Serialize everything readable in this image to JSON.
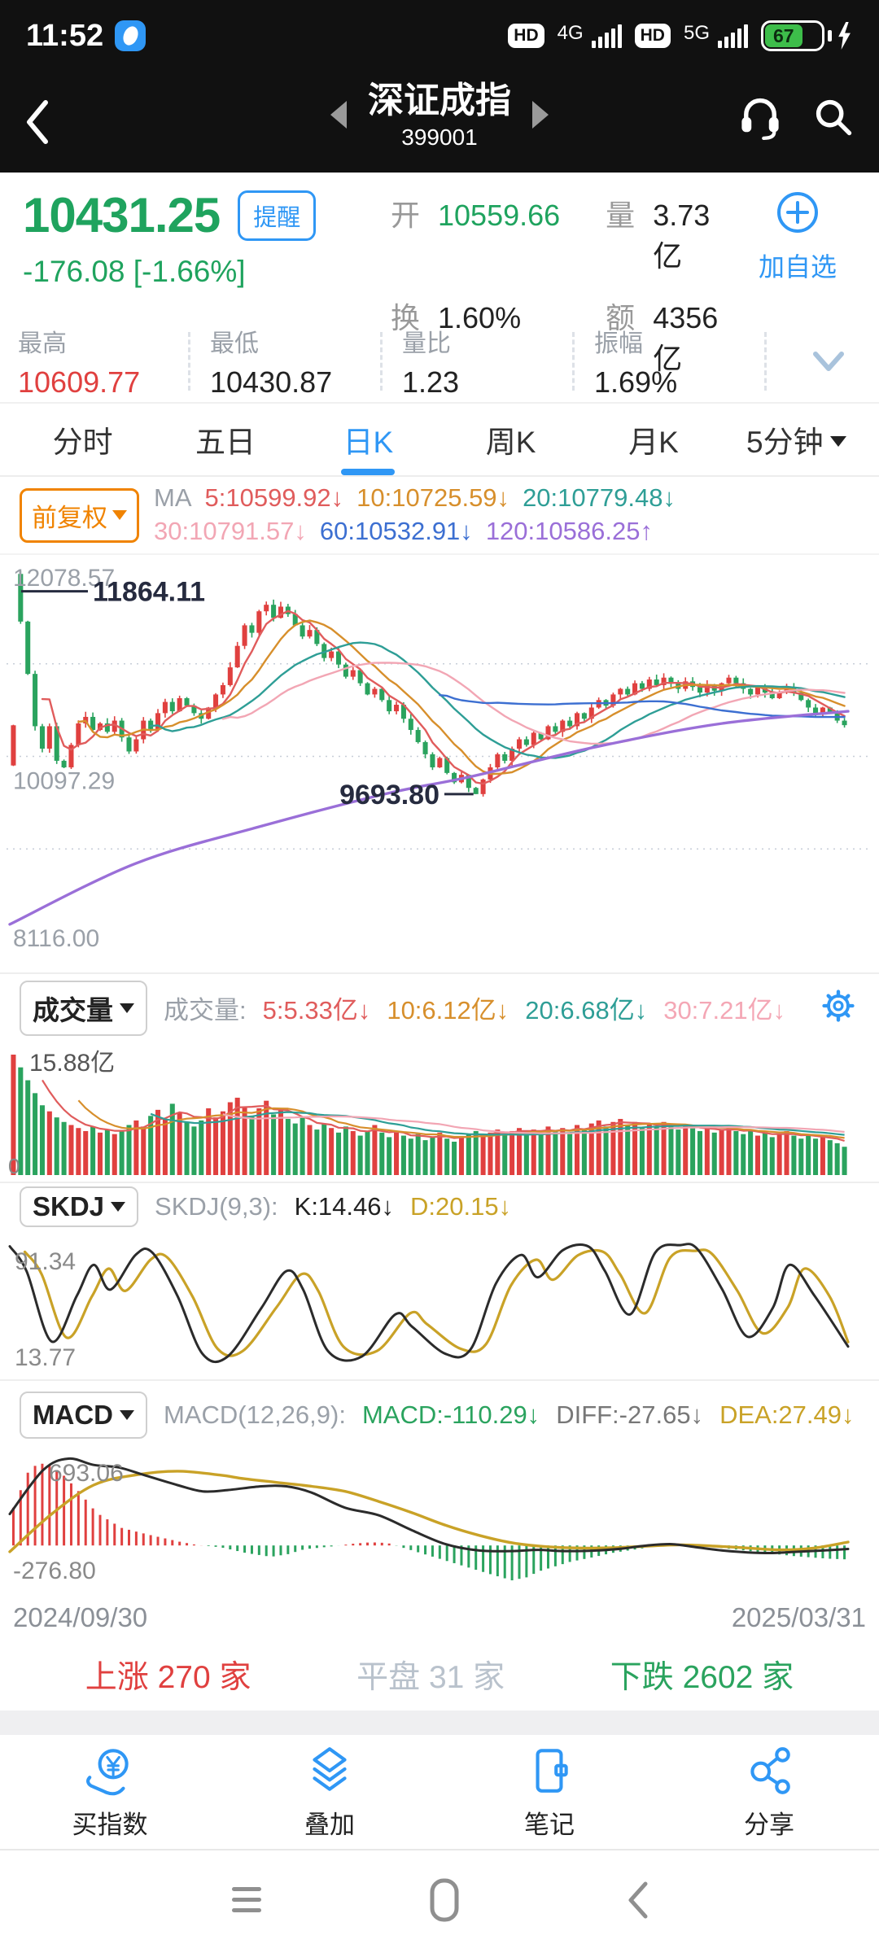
{
  "status_bar": {
    "time": "11:52",
    "hd": "HD",
    "net1": "4G",
    "net2": "5G",
    "battery": "67"
  },
  "header": {
    "title": "深证成指",
    "code": "399001"
  },
  "quote": {
    "price": "10431.25",
    "alert_label": "提醒",
    "change": "-176.08  [-1.66%]",
    "open_label": "开",
    "open": "10559.66",
    "vol_label": "量",
    "vol": "3.73亿",
    "turnover_label": "换",
    "turnover": "1.60%",
    "amount_label": "额",
    "amount": "4356亿",
    "add_label": "加自选"
  },
  "stats": {
    "high_label": "最高",
    "high": "10609.77",
    "low_label": "最低",
    "low": "10430.87",
    "ratio_label": "量比",
    "ratio": "1.23",
    "amp_label": "振幅",
    "amp": "1.69%"
  },
  "tabs": [
    {
      "label": "分时"
    },
    {
      "label": "五日"
    },
    {
      "label": "日K"
    },
    {
      "label": "周K"
    },
    {
      "label": "月K"
    },
    {
      "label": "5分钟"
    }
  ],
  "ma_bar": {
    "adj_label": "前复权",
    "ma_label": "MA",
    "items": [
      {
        "text": "5:10599.92↓",
        "color": "#e05c5c"
      },
      {
        "text": "10:10725.59↓",
        "color": "#d78f2c"
      },
      {
        "text": "20:10779.48↓",
        "color": "#2e9e96"
      },
      {
        "text": "30:10791.57↓",
        "color": "#f2a6b4"
      },
      {
        "text": "60:10532.91↓",
        "color": "#3c6fd1"
      },
      {
        "text": "120:10586.25↑",
        "color": "#9a6fd8"
      }
    ]
  },
  "vol_bar": {
    "btn_label": "成交量",
    "prefix": "成交量:",
    "items": [
      {
        "text": "5:5.33亿↓",
        "color": "#e05c5c"
      },
      {
        "text": "10:6.12亿↓",
        "color": "#d78f2c"
      },
      {
        "text": "20:6.68亿↓",
        "color": "#2e9e96"
      },
      {
        "text": "30:7.21亿↓",
        "color": "#f4a7b5"
      }
    ]
  },
  "skdj_bar": {
    "btn_label": "SKDJ",
    "prefix": "SKDJ(9,3):",
    "k": "K:14.46↓",
    "k_color": "#222222",
    "d": "D:20.15↓",
    "d_color": "#c9a227"
  },
  "macd_bar": {
    "btn_label": "MACD",
    "prefix": "MACD(12,26,9):",
    "macd": "MACD:-110.29↓",
    "macd_color": "#2aa35e",
    "diff": "DIFF:-27.65↓",
    "diff_color": "#777777",
    "dea": "DEA:27.49↓",
    "dea_color": "#c9a227"
  },
  "dates": {
    "start": "2024/09/30",
    "end": "2025/03/31"
  },
  "breadth": {
    "up": "上涨 270 家",
    "flat": "平盘 31 家",
    "down": "下跌 2602 家"
  },
  "toolbar": [
    {
      "label": "买指数"
    },
    {
      "label": "叠加"
    },
    {
      "label": "笔记"
    },
    {
      "label": "分享"
    }
  ],
  "colors": {
    "up": "#e0403f",
    "down": "#2aa35e",
    "accent": "#2f97f5",
    "price_green": "#1fa35e"
  },
  "chart_data": {
    "type": "candlestick+indicators",
    "x_range": [
      "2024/09/30",
      "2025/03/31"
    ],
    "main": {
      "ylim": [
        8116.0,
        12078.57
      ],
      "grid_labels": {
        "top": "12078.57",
        "mid": "10097.29",
        "bottom": "8116.00"
      },
      "annotations": [
        {
          "text": "11864.11",
          "value": 11864.11
        },
        {
          "text": "9693.80",
          "value": 9693.8
        }
      ],
      "open_overrides": {
        "0": 10000,
        "1": 12050
      },
      "closes": [
        10430,
        11540,
        10980,
        10420,
        10180,
        10420,
        10050,
        9980,
        10220,
        10450,
        10520,
        10380,
        10450,
        10360,
        10480,
        10300,
        10150,
        10280,
        10480,
        10390,
        10560,
        10680,
        10580,
        10720,
        10640,
        10560,
        10500,
        10620,
        10760,
        10860,
        11050,
        11280,
        11500,
        11420,
        11650,
        11720,
        11580,
        11700,
        11620,
        11500,
        11380,
        11450,
        11300,
        11150,
        11220,
        11080,
        10950,
        11020,
        10880,
        10760,
        10820,
        10700,
        10580,
        10650,
        10500,
        10380,
        10250,
        10120,
        9980,
        10080,
        9920,
        9820,
        9900,
        9760,
        9693.8,
        9850,
        9980,
        10120,
        10050,
        10180,
        10280,
        10220,
        10350,
        10280,
        10420,
        10360,
        10480,
        10420,
        10560,
        10500,
        10620,
        10700,
        10640,
        10760,
        10820,
        10760,
        10880,
        10820,
        10920,
        10860,
        10940,
        10880,
        10820,
        10900,
        10840,
        10780,
        10860,
        10800,
        10880,
        10940,
        10880,
        10820,
        10760,
        10840,
        10780,
        10720,
        10780,
        10840,
        10780,
        10700,
        10620,
        10560,
        10620,
        10560,
        10480,
        10431.25
      ],
      "ma_windows": [
        5,
        10,
        20,
        30,
        60
      ],
      "ma_colors": [
        "#e05c5c",
        "#d78f2c",
        "#2e9e96",
        "#f2a6b4",
        "#3c6fd1"
      ],
      "ma120": {
        "color": "#9a6fd8",
        "points": [
          [
            0,
            8300
          ],
          [
            0.15,
            8950
          ],
          [
            0.3,
            9350
          ],
          [
            0.45,
            9700
          ],
          [
            0.55,
            9880
          ],
          [
            0.7,
            10200
          ],
          [
            0.85,
            10450
          ],
          [
            1,
            10580
          ]
        ]
      }
    },
    "volume": {
      "max_label": "15.88亿",
      "zero_label": "0",
      "ylim": [
        0,
        15.88
      ],
      "values": [
        15.88,
        14.2,
        12.5,
        10.8,
        9.2,
        8.4,
        7.6,
        7.0,
        6.6,
        6.2,
        5.8,
        6.4,
        5.6,
        6.0,
        5.4,
        5.8,
        6.6,
        7.2,
        6.4,
        7.8,
        8.6,
        7.4,
        9.4,
        8.2,
        7.0,
        6.4,
        7.2,
        8.8,
        7.6,
        8.4,
        9.6,
        10.2,
        9.0,
        7.8,
        8.8,
        9.8,
        8.0,
        8.6,
        7.4,
        6.8,
        7.6,
        6.6,
        6.0,
        6.8,
        6.2,
        5.6,
        6.4,
        5.8,
        5.2,
        5.8,
        6.6,
        5.6,
        5.0,
        5.6,
        5.2,
        4.8,
        5.4,
        4.6,
        5.0,
        5.6,
        4.8,
        4.4,
        5.0,
        5.4,
        5.8,
        5.2,
        5.6,
        6.0,
        5.4,
        5.8,
        6.2,
        5.6,
        6.0,
        5.4,
        6.4,
        5.8,
        6.2,
        5.6,
        6.6,
        6.0,
        6.8,
        7.2,
        6.4,
        7.0,
        7.4,
        6.6,
        7.0,
        6.2,
        6.8,
        6.4,
        7.0,
        6.6,
        6.0,
        6.6,
        6.2,
        5.8,
        6.2,
        5.6,
        6.0,
        6.4,
        5.8,
        5.4,
        5.8,
        5.2,
        5.6,
        5.0,
        5.4,
        5.8,
        5.2,
        4.8,
        5.2,
        4.8,
        5.2,
        4.6,
        4.2,
        3.73
      ]
    },
    "skdj": {
      "top_label": "91.34",
      "bottom_label": "13.77",
      "ylim": [
        0,
        100
      ],
      "k_color": "#2b2b2b",
      "d_color": "#c9a227",
      "k_points": [
        [
          0,
          95
        ],
        [
          0.02,
          75
        ],
        [
          0.05,
          18
        ],
        [
          0.08,
          55
        ],
        [
          0.1,
          80
        ],
        [
          0.12,
          60
        ],
        [
          0.15,
          88
        ],
        [
          0.17,
          90
        ],
        [
          0.2,
          55
        ],
        [
          0.23,
          8
        ],
        [
          0.26,
          6
        ],
        [
          0.3,
          45
        ],
        [
          0.33,
          75
        ],
        [
          0.35,
          60
        ],
        [
          0.38,
          10
        ],
        [
          0.42,
          6
        ],
        [
          0.46,
          40
        ],
        [
          0.48,
          30
        ],
        [
          0.52,
          8
        ],
        [
          0.55,
          12
        ],
        [
          0.58,
          65
        ],
        [
          0.61,
          88
        ],
        [
          0.63,
          70
        ],
        [
          0.66,
          92
        ],
        [
          0.69,
          95
        ],
        [
          0.71,
          75
        ],
        [
          0.74,
          40
        ],
        [
          0.77,
          90
        ],
        [
          0.8,
          96
        ],
        [
          0.82,
          93
        ],
        [
          0.85,
          60
        ],
        [
          0.88,
          22
        ],
        [
          0.91,
          45
        ],
        [
          0.93,
          80
        ],
        [
          0.96,
          55
        ],
        [
          1,
          14
        ]
      ]
    },
    "macd": {
      "top_label": "693.06",
      "bottom_label": "-276.80",
      "ylim": [
        -276.8,
        693.06
      ],
      "diff_color": "#2b2b2b",
      "dea_color": "#c9a227",
      "hist_points": [
        [
          0,
          300
        ],
        [
          0.02,
          620
        ],
        [
          0.04,
          660
        ],
        [
          0.06,
          560
        ],
        [
          0.08,
          420
        ],
        [
          0.1,
          260
        ],
        [
          0.13,
          140
        ],
        [
          0.16,
          90
        ],
        [
          0.18,
          60
        ],
        [
          0.2,
          30
        ],
        [
          0.22,
          5
        ],
        [
          0.25,
          -15
        ],
        [
          0.28,
          -60
        ],
        [
          0.31,
          -90
        ],
        [
          0.33,
          -70
        ],
        [
          0.35,
          -30
        ],
        [
          0.38,
          -10
        ],
        [
          0.41,
          15
        ],
        [
          0.43,
          25
        ],
        [
          0.45,
          20
        ],
        [
          0.47,
          -20
        ],
        [
          0.5,
          -80
        ],
        [
          0.52,
          -120
        ],
        [
          0.54,
          -160
        ],
        [
          0.56,
          -200
        ],
        [
          0.58,
          -240
        ],
        [
          0.6,
          -277
        ],
        [
          0.62,
          -250
        ],
        [
          0.63,
          -210
        ],
        [
          0.65,
          -170
        ],
        [
          0.67,
          -130
        ],
        [
          0.7,
          -90
        ],
        [
          0.72,
          -60
        ],
        [
          0.74,
          -40
        ],
        [
          0.76,
          -20
        ],
        [
          0.78,
          10
        ],
        [
          0.8,
          15
        ],
        [
          0.82,
          8
        ],
        [
          0.84,
          -12
        ],
        [
          0.86,
          -25
        ],
        [
          0.88,
          -40
        ],
        [
          0.9,
          -55
        ],
        [
          0.92,
          -70
        ],
        [
          0.94,
          -85
        ],
        [
          0.96,
          -95
        ],
        [
          0.98,
          -105
        ],
        [
          1,
          -110
        ]
      ],
      "diff_points": [
        [
          0,
          250
        ],
        [
          0.04,
          600
        ],
        [
          0.07,
          690
        ],
        [
          0.1,
          640
        ],
        [
          0.13,
          620
        ],
        [
          0.16,
          560
        ],
        [
          0.2,
          480
        ],
        [
          0.23,
          430
        ],
        [
          0.26,
          440
        ],
        [
          0.3,
          470
        ],
        [
          0.33,
          470
        ],
        [
          0.36,
          420
        ],
        [
          0.4,
          300
        ],
        [
          0.44,
          240
        ],
        [
          0.48,
          120
        ],
        [
          0.52,
          10
        ],
        [
          0.56,
          -40
        ],
        [
          0.6,
          -45
        ],
        [
          0.63,
          -35
        ],
        [
          0.66,
          -45
        ],
        [
          0.7,
          -40
        ],
        [
          0.73,
          -25
        ],
        [
          0.76,
          0
        ],
        [
          0.79,
          10
        ],
        [
          0.82,
          -15
        ],
        [
          0.85,
          -40
        ],
        [
          0.88,
          -55
        ],
        [
          0.91,
          -60
        ],
        [
          0.94,
          -50
        ],
        [
          0.97,
          -40
        ],
        [
          1,
          -28
        ]
      ],
      "dea_points": [
        [
          0,
          -50
        ],
        [
          0.05,
          250
        ],
        [
          0.1,
          480
        ],
        [
          0.15,
          560
        ],
        [
          0.2,
          590
        ],
        [
          0.25,
          560
        ],
        [
          0.28,
          530
        ],
        [
          0.32,
          500
        ],
        [
          0.36,
          470
        ],
        [
          0.4,
          430
        ],
        [
          0.44,
          350
        ],
        [
          0.48,
          260
        ],
        [
          0.52,
          160
        ],
        [
          0.56,
          80
        ],
        [
          0.6,
          20
        ],
        [
          0.64,
          -10
        ],
        [
          0.68,
          -20
        ],
        [
          0.72,
          -18
        ],
        [
          0.76,
          -5
        ],
        [
          0.8,
          5
        ],
        [
          0.84,
          -5
        ],
        [
          0.88,
          -20
        ],
        [
          0.92,
          -35
        ],
        [
          0.96,
          -20
        ],
        [
          1,
          27
        ]
      ]
    }
  }
}
